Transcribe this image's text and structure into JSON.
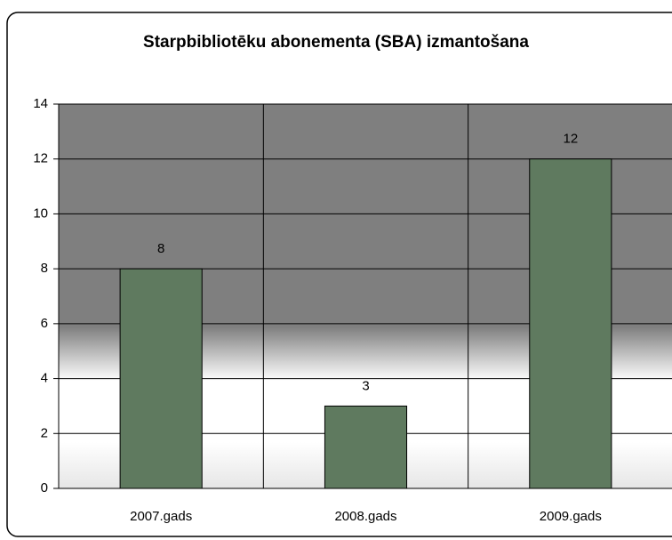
{
  "chart_data": {
    "type": "bar",
    "title": "Starpbibliotēku abonementa  (SBA) izmantošana",
    "categories": [
      "2007.gads",
      "2008.gads",
      "2009.gads"
    ],
    "values": [
      8,
      3,
      12
    ],
    "color": "#5f7a5f",
    "ylim": [
      0,
      14
    ],
    "yticks": [
      0,
      2,
      4,
      6,
      8,
      10,
      12,
      14
    ],
    "grid": true
  }
}
